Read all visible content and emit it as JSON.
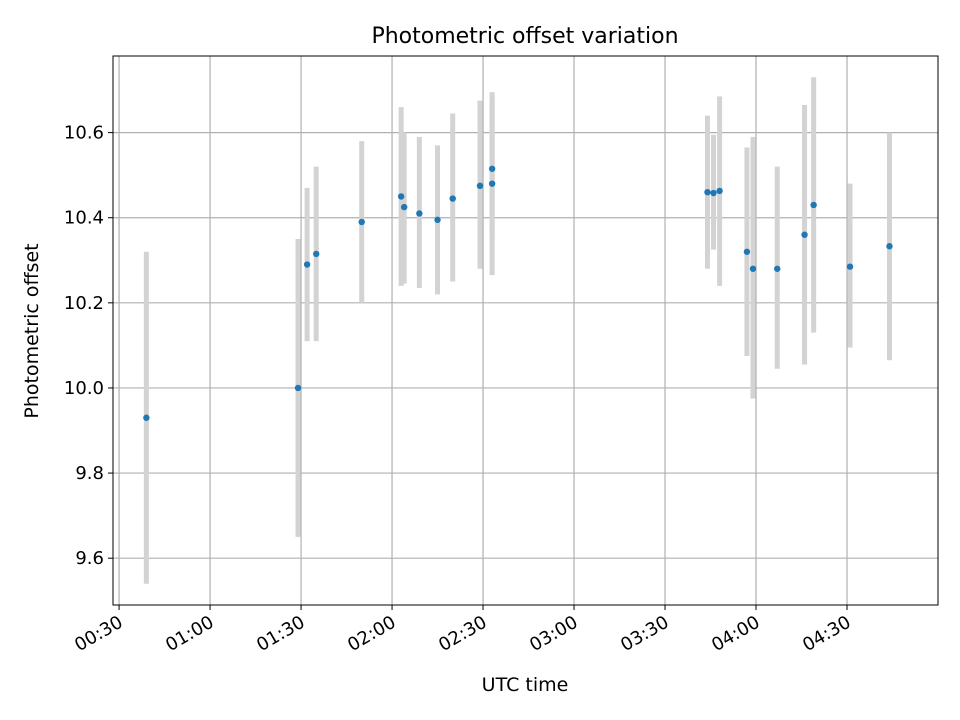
{
  "chart_data": {
    "type": "scatter",
    "title": "Photometric offset variation",
    "xlabel": "UTC time",
    "ylabel": "Photometric offset",
    "x_unit": "UTC time (HH:MM)",
    "xlim": [
      "00:28",
      "05:00"
    ],
    "ylim": [
      9.49,
      10.78
    ],
    "grid": true,
    "x_ticks": [
      "00:30",
      "01:00",
      "01:30",
      "02:00",
      "02:30",
      "03:00",
      "03:30",
      "04:00",
      "04:30"
    ],
    "y_ticks": [
      9.6,
      9.8,
      10.0,
      10.2,
      10.4,
      10.6
    ],
    "y_tick_labels": [
      "9.6",
      "9.8",
      "10.0",
      "10.2",
      "10.4",
      "10.6"
    ],
    "marker_color": "#1f77b4",
    "errorbar_color": "#d3d3d3",
    "points": [
      {
        "time": "00:39",
        "y": 9.93,
        "ylo": 9.54,
        "yhi": 10.32
      },
      {
        "time": "01:29",
        "y": 10.0,
        "ylo": 9.65,
        "yhi": 10.35
      },
      {
        "time": "01:32",
        "y": 10.29,
        "ylo": 10.11,
        "yhi": 10.47
      },
      {
        "time": "01:35",
        "y": 10.315,
        "ylo": 10.11,
        "yhi": 10.52
      },
      {
        "time": "01:50",
        "y": 10.39,
        "ylo": 10.2,
        "yhi": 10.58
      },
      {
        "time": "02:03",
        "y": 10.45,
        "ylo": 10.24,
        "yhi": 10.66
      },
      {
        "time": "02:04",
        "y": 10.425,
        "ylo": 10.245,
        "yhi": 10.6
      },
      {
        "time": "02:09",
        "y": 10.41,
        "ylo": 10.235,
        "yhi": 10.59
      },
      {
        "time": "02:15",
        "y": 10.395,
        "ylo": 10.22,
        "yhi": 10.57
      },
      {
        "time": "02:20",
        "y": 10.445,
        "ylo": 10.25,
        "yhi": 10.645
      },
      {
        "time": "02:29",
        "y": 10.475,
        "ylo": 10.28,
        "yhi": 10.675
      },
      {
        "time": "02:33",
        "y": 10.515,
        "ylo": 10.35,
        "yhi": 10.685
      },
      {
        "time": "02:33",
        "y": 10.48,
        "ylo": 10.265,
        "yhi": 10.695
      },
      {
        "time": "03:44",
        "y": 10.46,
        "ylo": 10.28,
        "yhi": 10.64
      },
      {
        "time": "03:46",
        "y": 10.458,
        "ylo": 10.325,
        "yhi": 10.595
      },
      {
        "time": "03:48",
        "y": 10.463,
        "ylo": 10.24,
        "yhi": 10.685
      },
      {
        "time": "03:57",
        "y": 10.32,
        "ylo": 10.075,
        "yhi": 10.565
      },
      {
        "time": "03:59",
        "y": 10.28,
        "ylo": 9.975,
        "yhi": 10.59
      },
      {
        "time": "04:07",
        "y": 10.28,
        "ylo": 10.045,
        "yhi": 10.52
      },
      {
        "time": "04:16",
        "y": 10.36,
        "ylo": 10.055,
        "yhi": 10.665
      },
      {
        "time": "04:19",
        "y": 10.43,
        "ylo": 10.13,
        "yhi": 10.73
      },
      {
        "time": "04:31",
        "y": 10.285,
        "ylo": 10.095,
        "yhi": 10.48
      },
      {
        "time": "04:44",
        "y": 10.333,
        "ylo": 10.065,
        "yhi": 10.6
      }
    ]
  }
}
